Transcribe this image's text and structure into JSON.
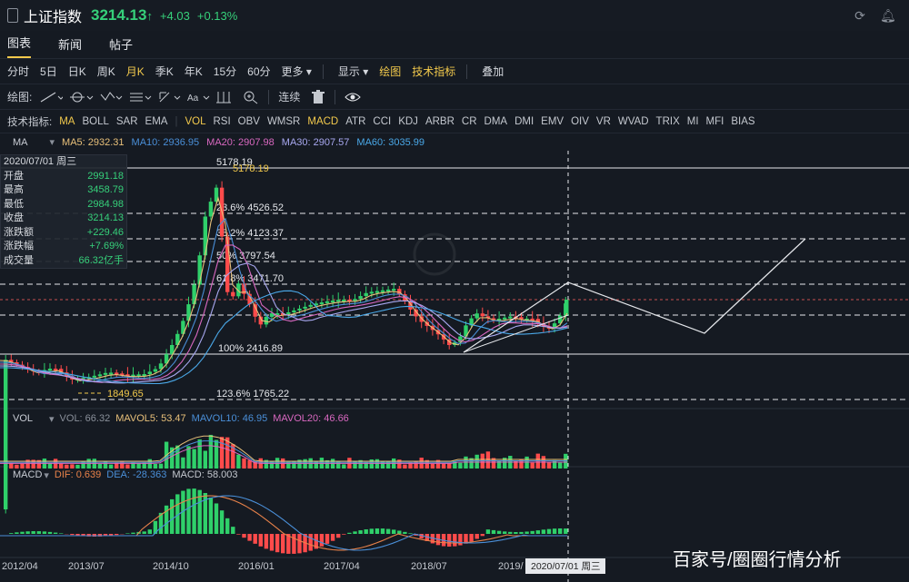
{
  "header": {
    "title": "上证指数",
    "price": "3214.13",
    "arrow": "↑",
    "change": "+4.03",
    "pct": "+0.13%",
    "refresh_icon": "refresh-icon",
    "bell_icon": "bell-icon"
  },
  "tabs": [
    {
      "label": "图表",
      "active": true
    },
    {
      "label": "新闻"
    },
    {
      "label": "帖子"
    }
  ],
  "periods": [
    {
      "label": "分时"
    },
    {
      "label": "5日"
    },
    {
      "label": "日K"
    },
    {
      "label": "周K"
    },
    {
      "label": "月K",
      "active": true
    },
    {
      "label": "季K"
    },
    {
      "label": "年K"
    },
    {
      "label": "15分"
    },
    {
      "label": "60分"
    },
    {
      "label": "更多 ▾"
    }
  ],
  "period_tools": {
    "display": "显示 ▾",
    "draw": "绘图",
    "tech": "技术指标",
    "overlay": "叠加"
  },
  "drawbar": {
    "label": "绘图:",
    "connect": "连续"
  },
  "indicators": [
    {
      "label": "技术指标:"
    },
    {
      "label": "MA",
      "on": true
    },
    {
      "label": "BOLL"
    },
    {
      "label": "SAR"
    },
    {
      "label": "EMA"
    },
    {
      "label": "|"
    },
    {
      "label": "VOL",
      "on": true
    },
    {
      "label": "RSI"
    },
    {
      "label": "OBV"
    },
    {
      "label": "WMSR"
    },
    {
      "label": "MACD",
      "on": true
    },
    {
      "label": "ATR"
    },
    {
      "label": "CCI"
    },
    {
      "label": "KDJ"
    },
    {
      "label": "ARBR"
    },
    {
      "label": "CR"
    },
    {
      "label": "DMA"
    },
    {
      "label": "DMI"
    },
    {
      "label": "EMV"
    },
    {
      "label": "OIV"
    },
    {
      "label": "VR"
    },
    {
      "label": "WVAD"
    },
    {
      "label": "TRIX"
    },
    {
      "label": "MI"
    },
    {
      "label": "MFI"
    },
    {
      "label": "BIAS"
    }
  ],
  "ma_legend": {
    "name": "MA",
    "items": [
      {
        "label": "MA5: 2932.31",
        "color": "#e8c07a"
      },
      {
        "label": "MA10: 2936.95",
        "color": "#4a8fd8"
      },
      {
        "label": "MA20: 2907.98",
        "color": "#d868c0"
      },
      {
        "label": "MA30: 2907.57",
        "color": "#a8a8f0"
      },
      {
        "label": "MA60: 3035.99",
        "color": "#4aa8e8"
      }
    ]
  },
  "infobox": {
    "date": "2020/07/01 周三",
    "rows": [
      {
        "label": "开盘",
        "value": "2991.18"
      },
      {
        "label": "最高",
        "value": "3458.79"
      },
      {
        "label": "最低",
        "value": "2984.98"
      },
      {
        "label": "收盘",
        "value": "3214.13"
      },
      {
        "label": "涨跌额",
        "value": "+229.46"
      },
      {
        "label": "涨跌幅",
        "value": "+7.69%"
      },
      {
        "label": "成交量",
        "value": "66.32亿手"
      }
    ]
  },
  "fib": [
    {
      "label": "5178.19",
      "y": 185
    },
    {
      "label": "23.6% 4526.52",
      "y": 235
    },
    {
      "label": "38.2% 4123.37",
      "y": 263
    },
    {
      "label": "50% 3797.54",
      "y": 288
    },
    {
      "label": "61.8% 3471.70",
      "y": 313
    },
    {
      "label": "100% 2416.89",
      "y": 390
    },
    {
      "label": "123.6% 1765.22",
      "y": 440
    }
  ],
  "annotations": {
    "high_label": "5178.19",
    "high_label2": "5178.19",
    "low_label": "1849.65"
  },
  "vol_legend": {
    "name": "VOL",
    "items": [
      {
        "label": "VOL: 66.32",
        "color": "#8a909a"
      },
      {
        "label": "MAVOL5: 53.47",
        "color": "#e8c07a"
      },
      {
        "label": "MAVOL10: 46.95",
        "color": "#4a8fd8"
      },
      {
        "label": "MAVOL20: 46.66",
        "color": "#d868c0"
      }
    ]
  },
  "macd_legend": {
    "name": "MACD",
    "items": [
      {
        "label": "DIF: 0.639",
        "color": "#e8824a"
      },
      {
        "label": "DEA: -28.363",
        "color": "#4a8fd8"
      },
      {
        "label": "MACD: 58.003",
        "color": "#c4c8cf"
      }
    ]
  },
  "xaxis": [
    "2012/04",
    "2013/07",
    "2014/10",
    "2016/01",
    "2017/04",
    "2018/07",
    "2019/"
  ],
  "cursor_date": "2020/07/01 周三",
  "watermark": "百家号/圈圈行情分析",
  "colors": {
    "up": "#ff4b4b",
    "down": "#2fd06a",
    "bg": "#151a22"
  }
}
